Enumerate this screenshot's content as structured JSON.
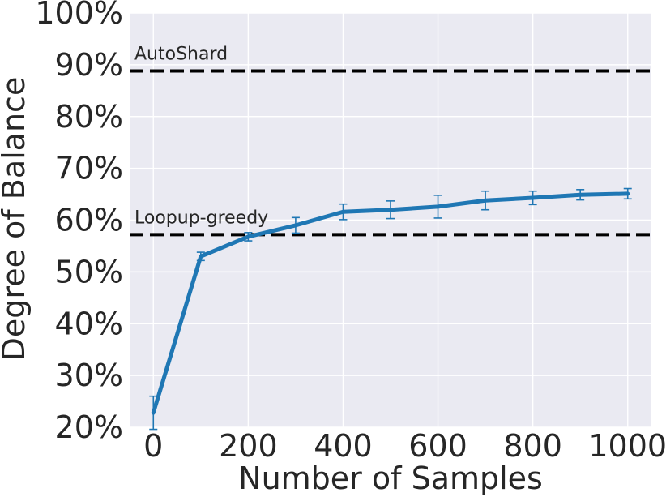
{
  "chart_data": {
    "type": "line",
    "title": "",
    "xlabel": "Number of Samples",
    "ylabel": "Degree of Balance",
    "xlim": [
      -50,
      1050
    ],
    "ylim": [
      20,
      100
    ],
    "x_ticks": [
      0,
      200,
      400,
      600,
      800,
      1000
    ],
    "x_tick_labels": [
      "0",
      "200",
      "400",
      "600",
      "800",
      "1000"
    ],
    "y_ticks": [
      20,
      30,
      40,
      50,
      60,
      70,
      80,
      90,
      100
    ],
    "y_tick_labels": [
      "20%",
      "30%",
      "40%",
      "50%",
      "60%",
      "70%",
      "80%",
      "90%",
      "100%"
    ],
    "grid": true,
    "series": [
      {
        "color": "#1f77b4",
        "x": [
          0,
          100,
          200,
          300,
          400,
          500,
          600,
          700,
          800,
          900,
          1000
        ],
        "y": [
          22.8,
          53.0,
          56.8,
          59.0,
          61.6,
          62.0,
          62.6,
          63.8,
          64.3,
          64.9,
          65.1
        ],
        "err": [
          3.2,
          0.8,
          0.8,
          1.5,
          1.5,
          1.7,
          2.2,
          1.8,
          1.3,
          1.0,
          1.0
        ]
      }
    ],
    "reference_lines": [
      {
        "label": "AutoShard",
        "y": 88.8,
        "color": "#000000",
        "style": "dashed"
      },
      {
        "label": "Loopup-greedy",
        "y": 57.2,
        "color": "#000000",
        "style": "dashed"
      }
    ]
  }
}
